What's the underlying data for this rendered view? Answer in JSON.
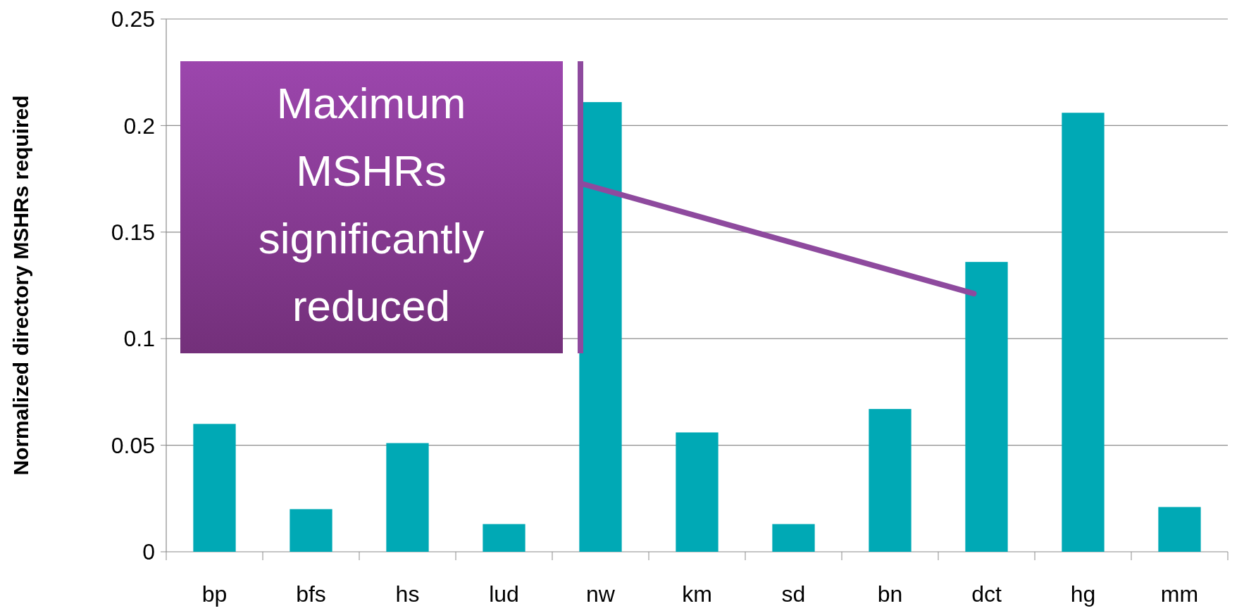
{
  "chart_data": {
    "type": "bar",
    "ylabel": "Normalized directory MSHRs required",
    "categories": [
      "bp",
      "bfs",
      "hs",
      "lud",
      "nw",
      "km",
      "sd",
      "bn",
      "dct",
      "hg",
      "mm"
    ],
    "values": [
      0.06,
      0.02,
      0.051,
      0.013,
      0.211,
      0.056,
      0.013,
      0.067,
      0.136,
      0.206,
      0.021
    ],
    "color": "#00a9b5",
    "ylim": [
      0,
      0.25
    ],
    "yticks": [
      0,
      0.05,
      0.1,
      0.15,
      0.2,
      0.25
    ],
    "grid": "y",
    "annotations": [
      "Maximum MSHRs significantly reduced"
    ]
  }
}
